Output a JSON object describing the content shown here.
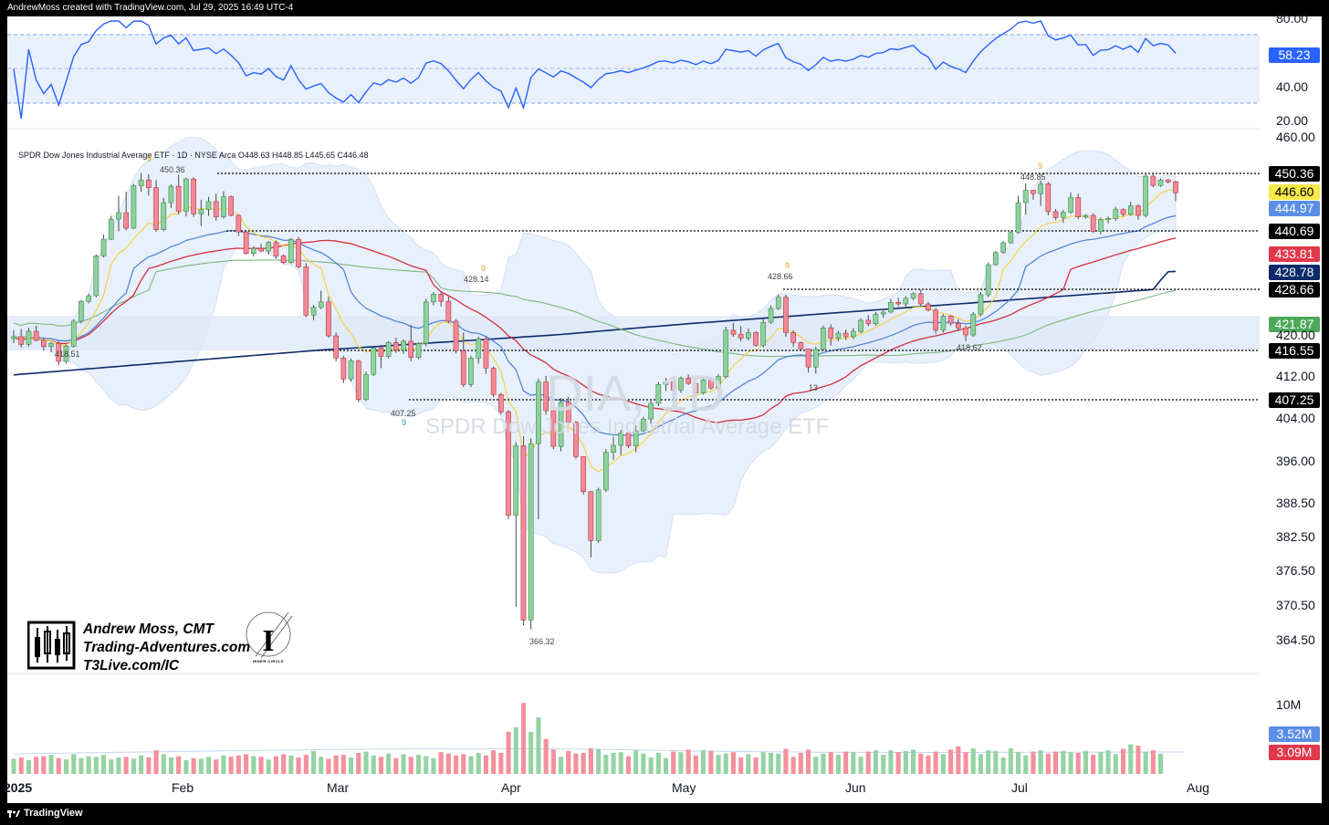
{
  "header": {
    "text": "AndrewMoss created with TradingView.com, Jul 29, 2025 16:49 UTC-4"
  },
  "footer": {
    "brand": "TradingView"
  },
  "symbol_line": "SPDR Dow Jones Industrial Average ETF · 1D · NYSE Arca   O448.63  H448.85  L445.65  C446.48",
  "watermark": {
    "ticker": "DIA, 1D",
    "name": "SPDR Dow Jones Industrial Average ETF"
  },
  "signature": {
    "name": "Andrew Moss, CMT",
    "site": "Trading-Adventures.com",
    "ref": "T3Live.com/IC",
    "seal_text": "INNER CIRCLE"
  },
  "colors": {
    "up": "#8fd19e",
    "down": "#f28a97",
    "rsi": "#2962ff",
    "ema8": "#f3d34a",
    "ema21": "#4a7fd4",
    "sma50": "#d32f3f",
    "sma100": "#7cb77c",
    "sma200": "#0d2a6b",
    "band": "#e8f0fb"
  },
  "chart_data": {
    "type": "candlestick",
    "title": "SPDR Dow Jones Industrial Average ETF",
    "subtitle": "1D · NYSE Arca",
    "ohlc_last": {
      "open": 448.63,
      "high": 448.85,
      "low": 445.65,
      "close": 446.48
    },
    "x_labels": [
      "2025",
      "Feb",
      "Mar",
      "Apr",
      "May",
      "Jun",
      "Jul",
      "Aug"
    ],
    "y_ticks": [
      "460.00",
      "420.00",
      "412.00",
      "404.00",
      "396.00",
      "388.50",
      "382.50",
      "376.50",
      "370.50",
      "364.50"
    ],
    "price_tags": [
      {
        "value": "450.36",
        "bg": "#000000"
      },
      {
        "value": "446.60",
        "bg": "#f6e94a",
        "fg": "#000000"
      },
      {
        "value": "444.97",
        "bg": "#5b8ee6"
      },
      {
        "value": "440.69",
        "bg": "#000000"
      },
      {
        "value": "433.81",
        "bg": "#e0394a"
      },
      {
        "value": "428.78",
        "bg": "#0d2a6b"
      },
      {
        "value": "428.66",
        "bg": "#000000"
      },
      {
        "value": "421.87",
        "bg": "#4ca85a"
      },
      {
        "value": "416.55",
        "bg": "#000000"
      },
      {
        "value": "407.25",
        "bg": "#000000"
      }
    ],
    "horizontal_levels": [
      450.36,
      440.69,
      428.66,
      416.55,
      407.25
    ],
    "annotations": [
      {
        "label": "450.36",
        "marker": "9"
      },
      {
        "label": "428.14",
        "marker": "9"
      },
      {
        "label": "418.51"
      },
      {
        "label": "407.25",
        "marker": "9"
      },
      {
        "label": "366.32"
      },
      {
        "label": "428.66",
        "marker": "9"
      },
      {
        "label": "448.85",
        "marker": "9"
      },
      {
        "label": "418.62"
      },
      {
        "label": "13"
      }
    ],
    "rsi": {
      "ticks": [
        "80.00",
        "40.00",
        "20.00"
      ],
      "last": "58.23"
    },
    "volume": {
      "ticks": [
        "10M"
      ],
      "tags": [
        {
          "value": "3.52M",
          "bg": "#5b8ee6"
        },
        {
          "value": "3.09M",
          "bg": "#e0394a"
        }
      ]
    },
    "candles": [
      [
        419.2,
        420.8,
        418.2,
        419.6
      ],
      [
        419.6,
        421.0,
        417.2,
        417.9
      ],
      [
        417.9,
        421.2,
        417.4,
        420.6
      ],
      [
        420.6,
        421.6,
        418.6,
        418.8
      ],
      [
        418.8,
        419.2,
        416.6,
        417.4
      ],
      [
        417.4,
        418.5,
        416.2,
        418.1
      ],
      [
        418.1,
        418.6,
        413.9,
        414.6
      ],
      [
        414.6,
        417.8,
        414.2,
        417.5
      ],
      [
        417.5,
        422.8,
        417.2,
        422.4
      ],
      [
        422.4,
        426.6,
        422.0,
        426.3
      ],
      [
        426.3,
        427.8,
        425.9,
        427.4
      ],
      [
        427.4,
        433.6,
        427.1,
        433.2
      ],
      [
        433.2,
        439.6,
        432.8,
        438.2
      ],
      [
        438.2,
        443.5,
        437.9,
        442.9
      ],
      [
        442.9,
        446.2,
        440.6,
        444.1
      ],
      [
        444.1,
        446.6,
        440.8,
        441.2
      ],
      [
        441.2,
        448.2,
        441.0,
        447.8
      ],
      [
        447.8,
        450.4,
        446.6,
        449.0
      ],
      [
        449.0,
        450.2,
        446.2,
        447.4
      ],
      [
        447.4,
        449.0,
        440.4,
        440.9
      ],
      [
        440.9,
        446.0,
        440.6,
        445.5
      ],
      [
        445.5,
        448.1,
        445.0,
        447.7
      ],
      [
        447.7,
        450.1,
        443.8,
        444.4
      ],
      [
        444.4,
        449.5,
        443.4,
        449.2
      ],
      [
        449.2,
        449.6,
        443.3,
        443.9
      ],
      [
        443.9,
        445.8,
        441.6,
        444.7
      ],
      [
        444.7,
        446.1,
        443.5,
        445.6
      ],
      [
        445.6,
        446.4,
        442.6,
        443.3
      ],
      [
        443.3,
        446.7,
        443.0,
        446.1
      ],
      [
        446.1,
        446.2,
        443.4,
        443.6
      ],
      [
        443.6,
        443.8,
        439.2,
        440.4
      ],
      [
        440.4,
        440.9,
        433.6,
        433.9
      ],
      [
        433.9,
        436.0,
        433.0,
        435.4
      ],
      [
        435.4,
        436.8,
        434.3,
        434.6
      ],
      [
        434.6,
        437.6,
        433.6,
        437.2
      ],
      [
        437.2,
        437.8,
        432.4,
        433.2
      ],
      [
        433.2,
        433.6,
        431.0,
        431.4
      ],
      [
        431.4,
        438.6,
        431.0,
        438.1
      ],
      [
        438.1,
        438.8,
        429.8,
        430.2
      ],
      [
        430.2,
        431.2,
        423.2,
        423.6
      ],
      [
        423.6,
        425.6,
        422.6,
        425.1
      ],
      [
        425.1,
        428.4,
        424.8,
        426.2
      ],
      [
        426.2,
        427.2,
        419.4,
        419.8
      ],
      [
        419.8,
        420.4,
        414.6,
        415.2
      ],
      [
        415.2,
        415.6,
        410.6,
        411.4
      ],
      [
        411.4,
        415.1,
        410.9,
        414.7
      ],
      [
        414.7,
        414.9,
        406.8,
        407.3
      ],
      [
        407.3,
        412.8,
        407.0,
        412.3
      ],
      [
        412.3,
        417.6,
        412.0,
        417.1
      ],
      [
        417.1,
        417.8,
        413.4,
        415.5
      ],
      [
        415.5,
        418.6,
        415.1,
        418.3
      ],
      [
        418.3,
        419.4,
        416.1,
        416.6
      ],
      [
        416.6,
        419.0,
        415.9,
        418.6
      ],
      [
        418.6,
        421.7,
        414.6,
        415.3
      ],
      [
        415.3,
        418.4,
        415.0,
        418.1
      ],
      [
        418.1,
        426.8,
        417.5,
        426.2
      ],
      [
        426.2,
        428.1,
        425.5,
        427.7
      ],
      [
        427.7,
        428.1,
        425.3,
        426.3
      ],
      [
        426.3,
        427.2,
        422.0,
        422.4
      ],
      [
        422.4,
        422.8,
        416.0,
        416.5
      ],
      [
        416.5,
        420.4,
        409.8,
        410.3
      ],
      [
        410.3,
        415.6,
        409.8,
        415.2
      ],
      [
        415.2,
        419.6,
        414.2,
        419.1
      ],
      [
        419.1,
        419.8,
        412.4,
        413.4
      ],
      [
        413.4,
        413.7,
        407.8,
        408.3
      ],
      [
        408.3,
        408.6,
        404.6,
        405.1
      ],
      [
        405.1,
        405.4,
        385.6,
        386.3
      ],
      [
        386.3,
        399.5,
        370.2,
        398.8
      ],
      [
        398.8,
        400.6,
        367.0,
        367.9
      ],
      [
        367.9,
        400.2,
        366.3,
        399.2
      ],
      [
        399.2,
        411.5,
        385.6,
        410.8
      ],
      [
        410.8,
        412.0,
        404.6,
        405.3
      ],
      [
        405.3,
        405.5,
        398.2,
        398.7
      ],
      [
        398.7,
        407.6,
        397.8,
        406.8
      ],
      [
        406.8,
        407.8,
        402.6,
        403.2
      ],
      [
        403.2,
        403.4,
        396.4,
        396.8
      ],
      [
        396.8,
        396.9,
        390.0,
        390.5
      ],
      [
        390.5,
        390.6,
        378.8,
        381.8
      ],
      [
        381.8,
        391.2,
        381.4,
        390.8
      ],
      [
        390.8,
        398.2,
        390.4,
        397.6
      ],
      [
        397.6,
        400.5,
        396.2,
        398.9
      ],
      [
        398.9,
        401.8,
        397.1,
        401.2
      ],
      [
        401.2,
        401.5,
        398.4,
        398.8
      ],
      [
        398.8,
        402.6,
        397.6,
        401.6
      ],
      [
        401.6,
        404.2,
        401.0,
        403.8
      ],
      [
        403.8,
        407.1,
        402.9,
        406.6
      ],
      [
        406.6,
        410.8,
        406.1,
        410.3
      ],
      [
        410.3,
        411.6,
        409.0,
        410.8
      ],
      [
        410.8,
        411.2,
        406.8,
        409.2
      ],
      [
        409.2,
        411.9,
        408.6,
        411.6
      ],
      [
        411.6,
        412.3,
        410.2,
        410.5
      ],
      [
        410.5,
        410.6,
        408.2,
        408.6
      ],
      [
        408.6,
        411.8,
        408.3,
        411.2
      ],
      [
        411.2,
        411.8,
        409.3,
        409.6
      ],
      [
        409.6,
        412.3,
        409.3,
        411.9
      ],
      [
        411.9,
        421.4,
        411.5,
        420.8
      ],
      [
        420.8,
        422.1,
        419.6,
        420.1
      ],
      [
        420.1,
        421.5,
        418.6,
        419.3
      ],
      [
        419.3,
        421.1,
        418.8,
        420.4
      ],
      [
        420.4,
        420.6,
        417.4,
        417.7
      ],
      [
        417.7,
        422.8,
        417.2,
        422.2
      ],
      [
        422.2,
        425.5,
        421.9,
        424.9
      ],
      [
        424.9,
        427.6,
        424.6,
        427.1
      ],
      [
        427.1,
        427.6,
        419.6,
        420.4
      ],
      [
        420.4,
        420.8,
        417.4,
        418.3
      ],
      [
        418.3,
        418.5,
        416.4,
        416.9
      ],
      [
        416.9,
        416.8,
        412.6,
        413.6
      ],
      [
        413.6,
        417.4,
        412.4,
        416.8
      ],
      [
        416.8,
        421.6,
        416.5,
        421.2
      ],
      [
        421.2,
        421.8,
        417.7,
        419.3
      ],
      [
        419.3,
        420.7,
        418.6,
        420.3
      ],
      [
        420.3,
        420.9,
        418.9,
        419.6
      ],
      [
        419.6,
        421.2,
        419.1,
        420.6
      ],
      [
        420.6,
        423.0,
        420.3,
        422.6
      ],
      [
        422.6,
        423.6,
        421.5,
        421.9
      ],
      [
        421.9,
        424.2,
        421.6,
        423.8
      ],
      [
        423.8,
        424.5,
        423.1,
        424.2
      ],
      [
        424.2,
        426.8,
        423.9,
        426.1
      ],
      [
        426.1,
        427.0,
        425.2,
        425.8
      ],
      [
        425.8,
        427.3,
        425.1,
        426.9
      ],
      [
        426.9,
        428.1,
        426.5,
        427.8
      ],
      [
        427.8,
        428.6,
        425.4,
        425.8
      ],
      [
        425.8,
        426.2,
        424.3,
        424.6
      ],
      [
        424.6,
        425.0,
        420.2,
        420.8
      ],
      [
        420.8,
        423.8,
        420.4,
        423.4
      ],
      [
        423.4,
        423.6,
        421.6,
        422.0
      ],
      [
        422.0,
        422.8,
        420.6,
        421.2
      ],
      [
        421.2,
        421.6,
        418.6,
        420.0
      ],
      [
        420.0,
        424.2,
        419.6,
        423.8
      ],
      [
        423.8,
        428.1,
        423.4,
        427.6
      ],
      [
        427.6,
        431.4,
        427.1,
        430.8
      ],
      [
        430.8,
        434.6,
        430.5,
        434.2
      ],
      [
        434.2,
        437.6,
        433.8,
        437.1
      ],
      [
        437.1,
        440.6,
        436.8,
        440.2
      ],
      [
        440.2,
        446.2,
        439.8,
        445.5
      ],
      [
        445.5,
        448.3,
        443.8,
        446.9
      ],
      [
        446.9,
        447.0,
        445.8,
        446.4
      ],
      [
        446.4,
        448.9,
        445.2,
        448.2
      ],
      [
        448.2,
        448.6,
        443.6,
        444.3
      ],
      [
        444.3,
        444.8,
        442.7,
        443.2
      ],
      [
        443.2,
        444.6,
        442.2,
        444.2
      ],
      [
        444.2,
        446.5,
        443.9,
        446.0
      ],
      [
        446.0,
        446.4,
        442.9,
        443.3
      ],
      [
        443.3,
        443.8,
        443.0,
        443.6
      ],
      [
        443.6,
        444.0,
        440.0,
        440.5
      ],
      [
        440.5,
        443.2,
        439.6,
        442.8
      ],
      [
        442.8,
        443.4,
        442.1,
        443.0
      ],
      [
        443.0,
        445.1,
        442.6,
        444.7
      ],
      [
        444.7,
        444.9,
        443.4,
        443.8
      ],
      [
        443.8,
        445.6,
        443.5,
        445.2
      ],
      [
        445.2,
        445.3,
        442.8,
        443.6
      ],
      [
        443.6,
        450.4,
        443.2,
        449.8
      ],
      [
        449.8,
        450.2,
        447.5,
        447.9
      ],
      [
        447.9,
        449.3,
        447.6,
        449.0
      ],
      [
        449.0,
        449.2,
        448.3,
        448.6
      ],
      [
        448.63,
        448.85,
        445.65,
        446.48
      ]
    ],
    "volume_values": [
      2.3,
      2.5,
      2.1,
      2.6,
      2.7,
      2.9,
      2.4,
      2.2,
      3.0,
      2.4,
      2.7,
      2.6,
      2.9,
      2.2,
      2.5,
      2.6,
      2.3,
      2.8,
      2.5,
      3.6,
      3.0,
      2.5,
      2.7,
      2.1,
      2.4,
      2.3,
      2.6,
      2.2,
      2.8,
      2.6,
      2.8,
      3.0,
      2.7,
      2.6,
      2.2,
      2.7,
      3.0,
      2.8,
      2.5,
      2.9,
      3.5,
      2.6,
      2.3,
      2.8,
      2.9,
      2.5,
      3.2,
      3.4,
      2.8,
      2.6,
      3.1,
      2.4,
      3.0,
      2.6,
      2.9,
      2.7,
      2.4,
      3.3,
      3.1,
      2.8,
      3.0,
      2.7,
      3.2,
      2.8,
      3.6,
      3.2,
      6.4,
      7.1,
      10.8,
      6.4,
      8.6,
      5.3,
      3.7,
      2.6,
      3.5,
      3.1,
      3.2,
      3.9,
      3.8,
      2.9,
      3.2,
      3.3,
      2.7,
      3.6,
      3.1,
      2.5,
      3.2,
      2.4,
      3.4,
      3.3,
      3.7,
      2.8,
      3.6,
      3.5,
      2.9,
      3.1,
      3.3,
      2.5,
      3.0,
      2.5,
      3.3,
      3.2,
      3.1,
      3.8,
      2.6,
      3.2,
      3.7,
      2.6,
      3.1,
      3.3,
      2.9,
      3.4,
      3.3,
      2.6,
      3.4,
      3.6,
      2.9,
      3.6,
      3.3,
      3.5,
      3.7,
      3.1,
      2.8,
      3.4,
      3.0,
      3.7,
      4.2,
      3.3,
      3.9,
      3.0,
      3.6,
      3.5,
      2.5,
      3.9,
      3.3,
      2.8,
      3.4,
      3.6,
      3.1,
      3.4,
      3.5,
      3.3,
      3.2,
      3.5,
      2.9,
      3.3,
      3.6,
      3.0,
      3.8,
      4.5,
      4.3,
      3.4,
      3.6,
      3.09
    ]
  }
}
